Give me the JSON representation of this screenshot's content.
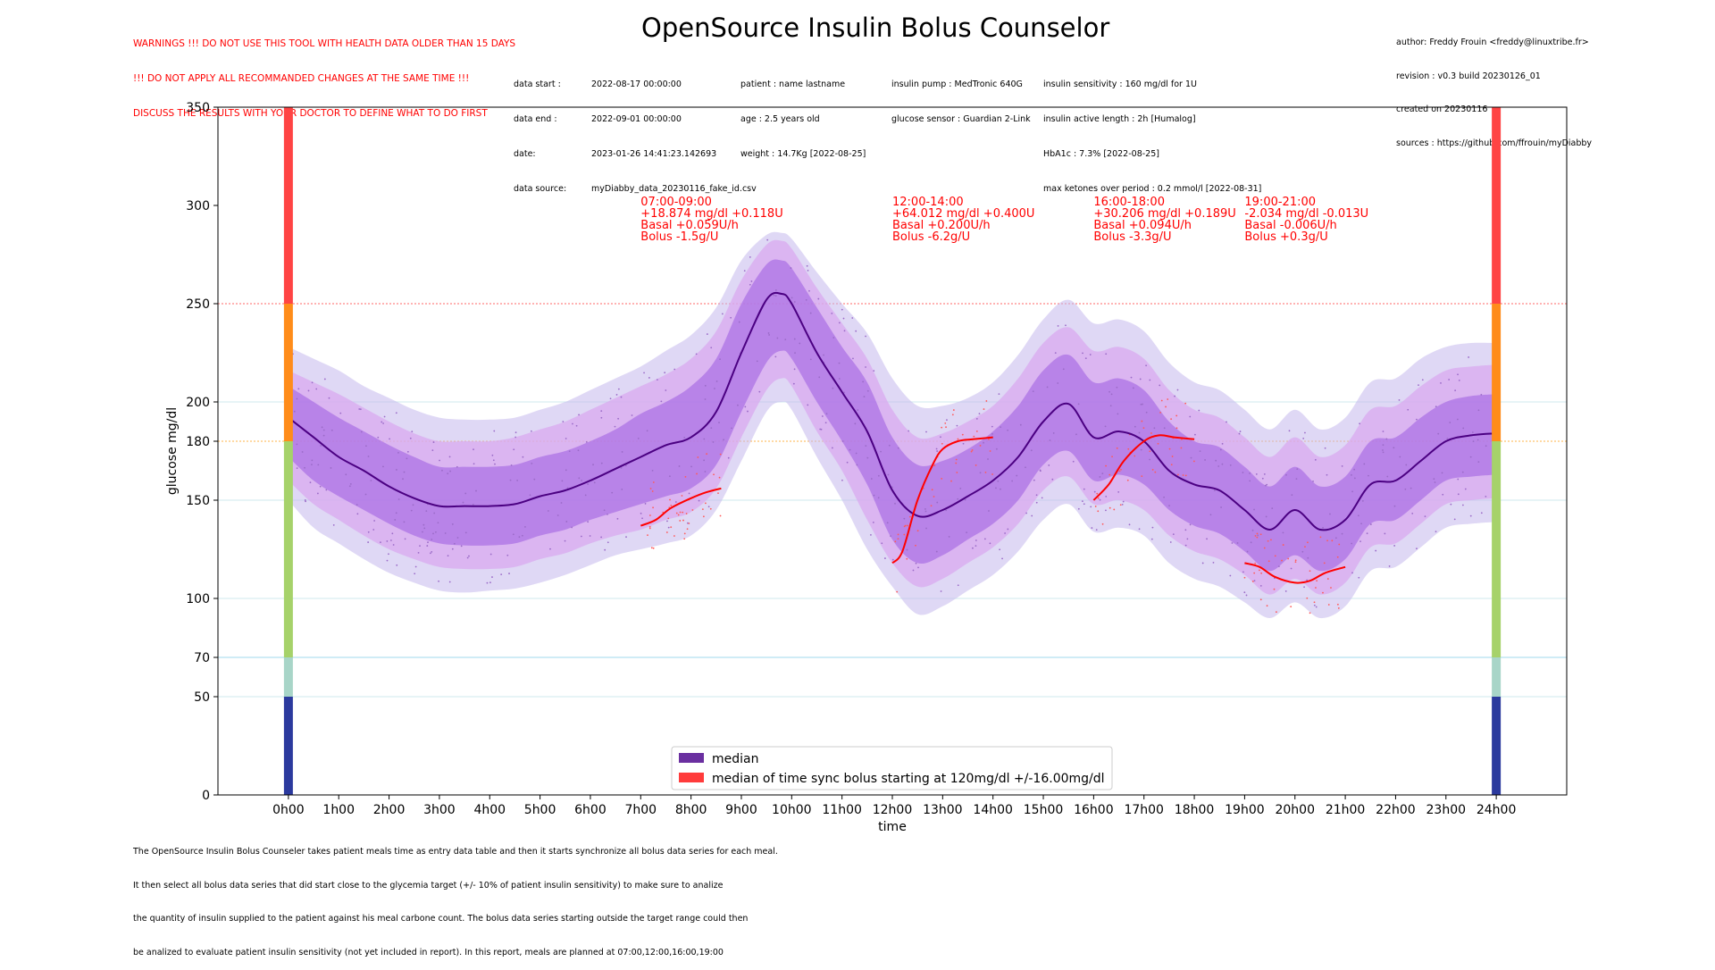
{
  "warnings": [
    "WARNINGS !!! DO NOT USE THIS TOOL WITH HEALTH DATA OLDER THAN 15 DAYS",
    "!!! DO NOT APPLY ALL RECOMMANDED CHANGES AT THE SAME TIME !!!",
    "DISCUSS THE RESULTS WITH YOUR DOCTOR TO DEFINE WHAT TO DO FIRST"
  ],
  "title": "OpenSource Insulin Bolus Counselor",
  "author_info": [
    "author: Freddy Frouin <freddy@linuxtribe.fr>",
    "revision : v0.3 build 20230126_01",
    "created on 20230116",
    "sources : https://github.com/ffrouin/myDiabby"
  ],
  "meta": {
    "col1_labels": [
      "data start :",
      "data end :",
      "date:",
      "data source:"
    ],
    "col1_values": [
      "2022-08-17 00:00:00",
      "2022-09-01 00:00:00",
      "2023-01-26 14:41:23.142693",
      "myDiabby_data_20230116_fake_id.csv"
    ],
    "col2": [
      "patient : name lastname",
      "age : 2.5 years old",
      "weight : 14.7Kg [2022-08-25]"
    ],
    "col3": [
      "insulin pump : MedTronic 640G",
      "glucose sensor : Guardian 2-Link"
    ],
    "col4": [
      "insulin sensitivity : 160 mg/dl for 1U",
      "insulin active length : 2h [Humalog]",
      "HbA1c : 7.3% [2022-08-25]",
      "max ketones over period : 0.2 mmol/l [2022-08-31]"
    ]
  },
  "footer": [
    "The OpenSource Insulin Bolus Counseler takes patient meals time as entry data table and then it starts synchronize all bolus data series for each meal.",
    "It then select all bolus data series that did start close to the glycemia target (+/- 10% of patient insulin sensitivity) to make sure to analize",
    "the quantity of insulin supplied to the patient against his meal carbone count. The bolus data series starting outside the target range could then",
    "be analized to evaluate patient insulin sensitivity (not yet included in report). In this report, meals are planned at 07:00,12:00,16:00,19:00"
  ],
  "colors": {
    "median": "#4b0082",
    "band_inner": "#9b59e0",
    "band_mid": "#d9a6f0",
    "band_outer": "#c5b8ec",
    "bolus": "#ff0000",
    "zone_very_low": "#2b3a9e",
    "zone_low": "#a8d5c8",
    "zone_target": "#a6d26a",
    "zone_high": "#ff8c1a",
    "zone_very_high": "#ff4444"
  },
  "chart_data": {
    "type": "line",
    "xlabel": "time",
    "ylabel": "glucose mg/dl",
    "xlim": [
      -1.4,
      25.4
    ],
    "ylim": [
      0,
      350
    ],
    "x_ticks": [
      0,
      1,
      2,
      3,
      4,
      5,
      6,
      7,
      8,
      9,
      10,
      11,
      12,
      13,
      14,
      15,
      16,
      17,
      18,
      19,
      20,
      21,
      22,
      23,
      24
    ],
    "x_tick_labels": [
      "0h00",
      "1h00",
      "2h00",
      "3h00",
      "4h00",
      "5h00",
      "6h00",
      "7h00",
      "8h00",
      "9h00",
      "10h00",
      "11h00",
      "12h00",
      "13h00",
      "14h00",
      "15h00",
      "16h00",
      "17h00",
      "18h00",
      "19h00",
      "20h00",
      "21h00",
      "22h00",
      "23h00",
      "24h00"
    ],
    "y_ticks": [
      0,
      50,
      70,
      100,
      150,
      180,
      200,
      250,
      300,
      350
    ],
    "reference_lines": [
      {
        "y": 250,
        "color": "#ff6666"
      },
      {
        "y": 180,
        "color": "#ffb347"
      },
      {
        "y": 200,
        "color": "#cfe8ee"
      },
      {
        "y": 150,
        "color": "#cfe8ee"
      },
      {
        "y": 100,
        "color": "#cfe8ee"
      },
      {
        "y": 70,
        "color": "#9fd8ec"
      },
      {
        "y": 50,
        "color": "#cfe8ee"
      }
    ],
    "zones": [
      {
        "from": 0,
        "to": 50,
        "color": "#2b3a9e"
      },
      {
        "from": 50,
        "to": 70,
        "color": "#a8d5c8"
      },
      {
        "from": 70,
        "to": 180,
        "color": "#a6d26a"
      },
      {
        "from": 180,
        "to": 250,
        "color": "#ff8c1a"
      },
      {
        "from": 250,
        "to": 350,
        "color": "#ff4444"
      }
    ],
    "median": {
      "name": "median",
      "x": [
        0,
        0.5,
        1,
        1.5,
        2,
        2.5,
        3,
        3.5,
        4,
        4.5,
        5,
        5.5,
        6,
        6.5,
        7,
        7.5,
        8,
        8.5,
        9,
        9.5,
        9.8,
        10,
        10.5,
        11,
        11.5,
        12,
        12.5,
        13,
        13.5,
        14,
        14.5,
        15,
        15.5,
        16,
        16.5,
        17,
        17.5,
        18,
        18.5,
        19,
        19.5,
        20,
        20.5,
        21,
        21.5,
        22,
        22.5,
        23,
        23.5,
        24
      ],
      "y": [
        192,
        182,
        172,
        165,
        157,
        151,
        147,
        147,
        147,
        148,
        152,
        155,
        160,
        166,
        172,
        178,
        182,
        195,
        225,
        252,
        255,
        250,
        225,
        205,
        185,
        155,
        142,
        145,
        152,
        160,
        172,
        190,
        199,
        182,
        185,
        180,
        165,
        158,
        155,
        145,
        135,
        145,
        135,
        140,
        158,
        160,
        170,
        180,
        183,
        184
      ]
    },
    "bands": {
      "inner_low": [
        172,
        160,
        152,
        145,
        138,
        132,
        128,
        127,
        127,
        128,
        132,
        135,
        140,
        144,
        148,
        152,
        156,
        168,
        195,
        220,
        226,
        222,
        200,
        180,
        158,
        130,
        118,
        122,
        130,
        138,
        150,
        168,
        175,
        160,
        163,
        158,
        145,
        137,
        133,
        124,
        114,
        122,
        114,
        120,
        138,
        140,
        150,
        160,
        162,
        163
      ],
      "inner_high": [
        208,
        200,
        192,
        185,
        178,
        172,
        167,
        167,
        167,
        168,
        172,
        175,
        180,
        186,
        194,
        200,
        208,
        222,
        250,
        270,
        272,
        268,
        248,
        228,
        210,
        182,
        168,
        170,
        176,
        185,
        198,
        216,
        224,
        210,
        212,
        206,
        190,
        180,
        177,
        167,
        157,
        167,
        157,
        162,
        180,
        182,
        192,
        200,
        203,
        204
      ],
      "mid_low": [
        160,
        148,
        140,
        132,
        125,
        120,
        116,
        115,
        115,
        116,
        120,
        123,
        128,
        132,
        135,
        140,
        144,
        156,
        182,
        206,
        212,
        208,
        185,
        165,
        140,
        118,
        106,
        110,
        118,
        126,
        138,
        155,
        162,
        148,
        150,
        145,
        132,
        124,
        120,
        112,
        102,
        110,
        102,
        108,
        126,
        128,
        138,
        148,
        150,
        151
      ],
      "mid_high": [
        216,
        210,
        204,
        197,
        190,
        184,
        180,
        180,
        180,
        182,
        186,
        190,
        196,
        202,
        208,
        214,
        222,
        236,
        262,
        280,
        282,
        278,
        258,
        240,
        222,
        196,
        182,
        184,
        190,
        198,
        212,
        230,
        238,
        226,
        228,
        222,
        206,
        196,
        192,
        182,
        172,
        182,
        172,
        178,
        196,
        198,
        208,
        216,
        218,
        219
      ],
      "outer_low": [
        150,
        136,
        128,
        120,
        113,
        108,
        104,
        103,
        104,
        105,
        108,
        112,
        117,
        122,
        125,
        128,
        132,
        145,
        170,
        195,
        200,
        196,
        172,
        150,
        125,
        106,
        92,
        96,
        104,
        112,
        124,
        140,
        148,
        134,
        136,
        132,
        118,
        110,
        106,
        98,
        90,
        98,
        90,
        96,
        114,
        116,
        126,
        136,
        138,
        139
      ],
      "outer_high": [
        228,
        222,
        216,
        208,
        202,
        196,
        192,
        191,
        191,
        192,
        196,
        200,
        206,
        212,
        218,
        226,
        234,
        248,
        272,
        285,
        286,
        283,
        266,
        250,
        235,
        212,
        198,
        198,
        202,
        210,
        224,
        242,
        252,
        240,
        242,
        236,
        220,
        210,
        206,
        196,
        186,
        196,
        186,
        192,
        210,
        212,
        222,
        228,
        230,
        230
      ]
    },
    "bolus_series": [
      {
        "name": "median of time sync bolus starting at 120mg/dl +/-16.00mg/dl",
        "x": [
          7,
          7.3,
          7.6,
          8,
          8.3,
          8.6
        ],
        "y": [
          137,
          140,
          146,
          151,
          154,
          156
        ]
      },
      {
        "x": [
          12,
          12.2,
          12.5,
          12.8,
          13,
          13.3,
          13.6,
          14
        ],
        "y": [
          118,
          124,
          150,
          168,
          176,
          180,
          181,
          182
        ]
      },
      {
        "x": [
          16,
          16.3,
          16.6,
          17,
          17.3,
          17.6,
          18
        ],
        "y": [
          150,
          158,
          170,
          180,
          183,
          182,
          181
        ]
      },
      {
        "x": [
          19,
          19.3,
          19.6,
          20,
          20.3,
          20.6,
          21
        ],
        "y": [
          118,
          116,
          111,
          108,
          109,
          113,
          116
        ]
      }
    ],
    "annotations": [
      {
        "x": 7,
        "lines": [
          "07:00-09:00",
          "+18.874 mg/dl +0.118U",
          "Basal +0.059U/h",
          "Bolus  -1.5g/U"
        ]
      },
      {
        "x": 12,
        "lines": [
          "12:00-14:00",
          "+64.012 mg/dl +0.400U",
          "Basal +0.200U/h",
          "Bolus  -6.2g/U"
        ]
      },
      {
        "x": 16,
        "lines": [
          "16:00-18:00",
          "+30.206 mg/dl +0.189U",
          "Basal +0.094U/h",
          "Bolus  -3.3g/U"
        ]
      },
      {
        "x": 19,
        "lines": [
          "19:00-21:00",
          "-2.034 mg/dl -0.013U",
          "Basal -0.006U/h",
          "Bolus  +0.3g/U"
        ]
      }
    ],
    "legend": [
      {
        "label": "median",
        "color": "#6a2fa0"
      },
      {
        "label": "median of time sync bolus starting at 120mg/dl +/-16.00mg/dl",
        "color": "#ff3b3b"
      }
    ],
    "legend_position": "bottom-center"
  }
}
